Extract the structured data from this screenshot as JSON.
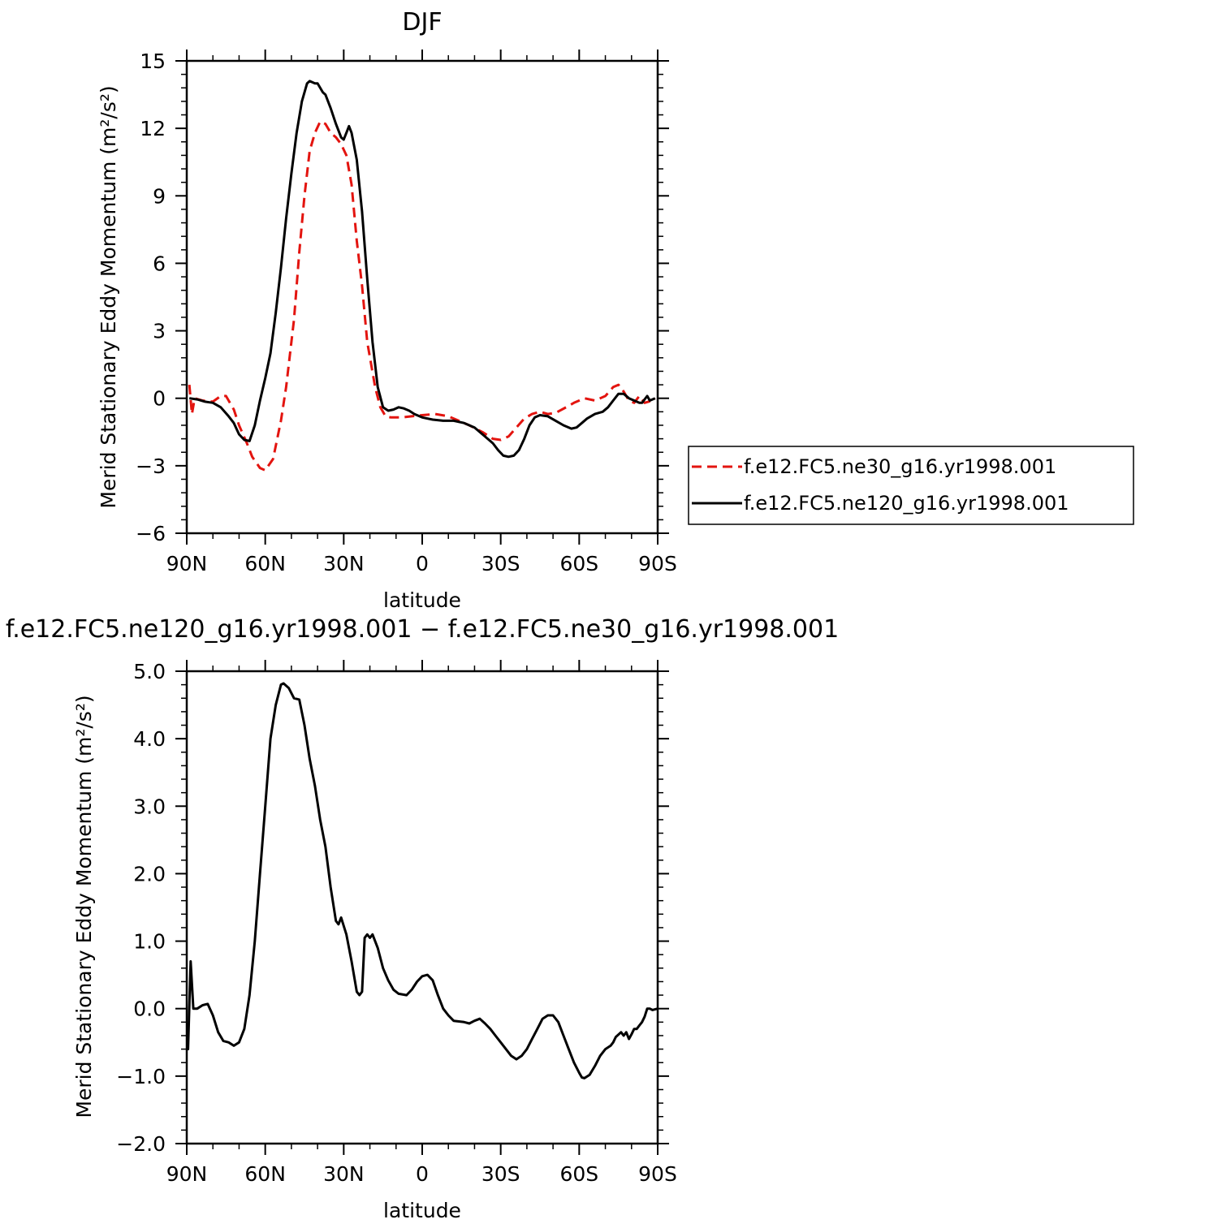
{
  "chart_data": [
    {
      "type": "line",
      "title": "DJF",
      "xlabel": "latitude",
      "ylabel": "Merid Stationary Eddy Momentum (m²/s²)",
      "xlim": [
        90,
        -90
      ],
      "ylim": [
        -6,
        15
      ],
      "xticks": [
        90,
        60,
        30,
        0,
        -30,
        -60,
        -90
      ],
      "xtick_labels": [
        "90N",
        "60N",
        "30N",
        "0",
        "30S",
        "60S",
        "90S"
      ],
      "yticks": [
        -6,
        -3,
        0,
        3,
        6,
        9,
        12,
        15
      ],
      "ytick_labels": [
        "−6",
        "−3",
        "0",
        "3",
        "6",
        "9",
        "12",
        "15"
      ],
      "grid": false,
      "legend": "right",
      "series": [
        {
          "name": "f.e12.FC5.ne30_g16.yr1998.001",
          "color": "#e3140f",
          "dash": "dashed",
          "points": [
            [
              89,
              0.6
            ],
            [
              88,
              -0.7
            ],
            [
              87,
              0.0
            ],
            [
              84,
              -0.1
            ],
            [
              80,
              -0.15
            ],
            [
              77,
              0.1
            ],
            [
              75,
              0.1
            ],
            [
              72,
              -0.5
            ],
            [
              70,
              -1.2
            ],
            [
              67,
              -2.0
            ],
            [
              65,
              -2.6
            ],
            [
              62,
              -3.1
            ],
            [
              60,
              -3.2
            ],
            [
              57,
              -2.7
            ],
            [
              54,
              -1.0
            ],
            [
              52,
              0.5
            ],
            [
              49,
              3.5
            ],
            [
              47,
              6.5
            ],
            [
              45,
              9.0
            ],
            [
              43,
              11.0
            ],
            [
              41,
              11.8
            ],
            [
              39,
              12.3
            ],
            [
              37,
              12.2
            ],
            [
              35,
              11.8
            ],
            [
              33,
              11.6
            ],
            [
              31,
              11.3
            ],
            [
              29,
              10.8
            ],
            [
              27,
              9.5
            ],
            [
              25,
              7.0
            ],
            [
              23,
              5.0
            ],
            [
              21,
              2.5
            ],
            [
              18,
              0.5
            ],
            [
              16,
              -0.4
            ],
            [
              14,
              -0.8
            ],
            [
              12,
              -0.85
            ],
            [
              8,
              -0.85
            ],
            [
              4,
              -0.8
            ],
            [
              0,
              -0.75
            ],
            [
              -5,
              -0.7
            ],
            [
              -10,
              -0.8
            ],
            [
              -14,
              -1.0
            ],
            [
              -18,
              -1.2
            ],
            [
              -23,
              -1.5
            ],
            [
              -27,
              -1.8
            ],
            [
              -30,
              -1.85
            ],
            [
              -33,
              -1.7
            ],
            [
              -36,
              -1.3
            ],
            [
              -39,
              -0.9
            ],
            [
              -42,
              -0.7
            ],
            [
              -45,
              -0.6
            ],
            [
              -48,
              -0.7
            ],
            [
              -51,
              -0.65
            ],
            [
              -55,
              -0.4
            ],
            [
              -58,
              -0.2
            ],
            [
              -62,
              0.0
            ],
            [
              -66,
              -0.1
            ],
            [
              -70,
              0.1
            ],
            [
              -73,
              0.5
            ],
            [
              -75,
              0.6
            ],
            [
              -77,
              0.3
            ],
            [
              -79,
              -0.1
            ],
            [
              -81,
              -0.2
            ],
            [
              -83,
              0.1
            ],
            [
              -85,
              -0.2
            ],
            [
              -88,
              -0.1
            ],
            [
              -89,
              0.0
            ]
          ]
        },
        {
          "name": "f.e12.FC5.ne120_g16.yr1998.001",
          "color": "#000000",
          "dash": "solid",
          "points": [
            [
              89,
              0.0
            ],
            [
              86,
              -0.05
            ],
            [
              83,
              -0.15
            ],
            [
              80,
              -0.2
            ],
            [
              77,
              -0.4
            ],
            [
              74,
              -0.8
            ],
            [
              72,
              -1.1
            ],
            [
              70,
              -1.6
            ],
            [
              68,
              -1.85
            ],
            [
              66,
              -1.9
            ],
            [
              64,
              -1.2
            ],
            [
              62,
              -0.1
            ],
            [
              60,
              0.9
            ],
            [
              58,
              2.0
            ],
            [
              56,
              3.8
            ],
            [
              54,
              5.8
            ],
            [
              52,
              8.0
            ],
            [
              50,
              10.0
            ],
            [
              48,
              11.8
            ],
            [
              46,
              13.2
            ],
            [
              44,
              14.0
            ],
            [
              43,
              14.1
            ],
            [
              41,
              14.0
            ],
            [
              40,
              14.0
            ],
            [
              38,
              13.6
            ],
            [
              37,
              13.5
            ],
            [
              35,
              12.9
            ],
            [
              33,
              12.2
            ],
            [
              31,
              11.6
            ],
            [
              30,
              11.5
            ],
            [
              29,
              11.8
            ],
            [
              28,
              12.1
            ],
            [
              27,
              11.8
            ],
            [
              25,
              10.6
            ],
            [
              23,
              8.3
            ],
            [
              21,
              5.3
            ],
            [
              19,
              2.5
            ],
            [
              17,
              0.5
            ],
            [
              15,
              -0.4
            ],
            [
              13,
              -0.55
            ],
            [
              11,
              -0.5
            ],
            [
              9,
              -0.4
            ],
            [
              7,
              -0.45
            ],
            [
              5,
              -0.55
            ],
            [
              3,
              -0.7
            ],
            [
              0,
              -0.85
            ],
            [
              -4,
              -0.95
            ],
            [
              -8,
              -1.0
            ],
            [
              -12,
              -1.0
            ],
            [
              -16,
              -1.1
            ],
            [
              -20,
              -1.3
            ],
            [
              -24,
              -1.7
            ],
            [
              -27,
              -2.0
            ],
            [
              -29,
              -2.3
            ],
            [
              -31,
              -2.55
            ],
            [
              -33,
              -2.6
            ],
            [
              -35,
              -2.55
            ],
            [
              -37,
              -2.3
            ],
            [
              -39,
              -1.8
            ],
            [
              -41,
              -1.2
            ],
            [
              -43,
              -0.85
            ],
            [
              -45,
              -0.75
            ],
            [
              -48,
              -0.8
            ],
            [
              -51,
              -1.0
            ],
            [
              -54,
              -1.2
            ],
            [
              -57,
              -1.35
            ],
            [
              -59,
              -1.3
            ],
            [
              -61,
              -1.1
            ],
            [
              -63,
              -0.9
            ],
            [
              -66,
              -0.7
            ],
            [
              -69,
              -0.6
            ],
            [
              -71,
              -0.4
            ],
            [
              -73,
              -0.1
            ],
            [
              -75,
              0.2
            ],
            [
              -77,
              0.2
            ],
            [
              -79,
              0.0
            ],
            [
              -81,
              -0.1
            ],
            [
              -83,
              -0.2
            ],
            [
              -84,
              -0.2
            ],
            [
              -85,
              -0.05
            ],
            [
              -86,
              0.1
            ],
            [
              -87,
              -0.1
            ],
            [
              -89,
              0.0
            ]
          ]
        }
      ]
    },
    {
      "type": "line",
      "title": "f.e12.FC5.ne120_g16.yr1998.001 − f.e12.FC5.ne30_g16.yr1998.001",
      "xlabel": "latitude",
      "ylabel": "Merid Stationary Eddy Momentum (m²/s²)",
      "xlim": [
        90,
        -90
      ],
      "ylim": [
        -2.0,
        5.0
      ],
      "xticks": [
        90,
        60,
        30,
        0,
        -30,
        -60,
        -90
      ],
      "xtick_labels": [
        "90N",
        "60N",
        "30N",
        "0",
        "30S",
        "60S",
        "90S"
      ],
      "yticks": [
        -2.0,
        -1.0,
        0.0,
        1.0,
        2.0,
        3.0,
        4.0,
        5.0
      ],
      "ytick_labels": [
        "−2.0",
        "−1.0",
        "0.0",
        "1.0",
        "2.0",
        "3.0",
        "4.0",
        "5.0"
      ],
      "grid": false,
      "legend": "none",
      "series": [
        {
          "color": "#000000",
          "dash": "solid",
          "points": [
            [
              90,
              -0.6
            ],
            [
              89.5,
              -0.6
            ],
            [
              88.5,
              0.7
            ],
            [
              87.5,
              0.0
            ],
            [
              86,
              0.0
            ],
            [
              84,
              0.05
            ],
            [
              82,
              0.07
            ],
            [
              80,
              -0.1
            ],
            [
              78,
              -0.35
            ],
            [
              76,
              -0.48
            ],
            [
              74,
              -0.5
            ],
            [
              72,
              -0.55
            ],
            [
              70,
              -0.5
            ],
            [
              68,
              -0.3
            ],
            [
              66,
              0.2
            ],
            [
              64,
              1.0
            ],
            [
              62,
              2.0
            ],
            [
              60,
              3.0
            ],
            [
              58,
              4.0
            ],
            [
              56,
              4.5
            ],
            [
              54,
              4.8
            ],
            [
              53,
              4.82
            ],
            [
              51,
              4.75
            ],
            [
              49,
              4.6
            ],
            [
              47,
              4.58
            ],
            [
              45,
              4.2
            ],
            [
              43,
              3.7
            ],
            [
              41,
              3.3
            ],
            [
              39,
              2.8
            ],
            [
              37,
              2.4
            ],
            [
              35,
              1.8
            ],
            [
              33,
              1.3
            ],
            [
              32,
              1.25
            ],
            [
              31,
              1.35
            ],
            [
              29,
              1.1
            ],
            [
              27,
              0.7
            ],
            [
              25,
              0.25
            ],
            [
              24,
              0.2
            ],
            [
              23,
              0.25
            ],
            [
              22,
              1.05
            ],
            [
              21,
              1.1
            ],
            [
              20,
              1.05
            ],
            [
              19,
              1.1
            ],
            [
              17,
              0.9
            ],
            [
              15,
              0.6
            ],
            [
              13,
              0.42
            ],
            [
              11,
              0.28
            ],
            [
              9,
              0.22
            ],
            [
              6,
              0.2
            ],
            [
              4,
              0.28
            ],
            [
              2,
              0.4
            ],
            [
              0,
              0.48
            ],
            [
              -2,
              0.5
            ],
            [
              -4,
              0.42
            ],
            [
              -6,
              0.2
            ],
            [
              -8,
              0.0
            ],
            [
              -10,
              -0.1
            ],
            [
              -12,
              -0.18
            ],
            [
              -16,
              -0.2
            ],
            [
              -18,
              -0.22
            ],
            [
              -20,
              -0.18
            ],
            [
              -22,
              -0.15
            ],
            [
              -24,
              -0.22
            ],
            [
              -26,
              -0.3
            ],
            [
              -28,
              -0.4
            ],
            [
              -30,
              -0.5
            ],
            [
              -32,
              -0.6
            ],
            [
              -34,
              -0.7
            ],
            [
              -36,
              -0.75
            ],
            [
              -38,
              -0.7
            ],
            [
              -40,
              -0.6
            ],
            [
              -42,
              -0.45
            ],
            [
              -44,
              -0.3
            ],
            [
              -46,
              -0.15
            ],
            [
              -48,
              -0.1
            ],
            [
              -50,
              -0.1
            ],
            [
              -52,
              -0.2
            ],
            [
              -54,
              -0.4
            ],
            [
              -56,
              -0.6
            ],
            [
              -58,
              -0.8
            ],
            [
              -60,
              -0.95
            ],
            [
              -61,
              -1.02
            ],
            [
              -62,
              -1.03
            ],
            [
              -64,
              -0.98
            ],
            [
              -66,
              -0.85
            ],
            [
              -68,
              -0.7
            ],
            [
              -70,
              -0.6
            ],
            [
              -72,
              -0.55
            ],
            [
              -73,
              -0.5
            ],
            [
              -74,
              -0.42
            ],
            [
              -76,
              -0.35
            ],
            [
              -77,
              -0.4
            ],
            [
              -78,
              -0.35
            ],
            [
              -79,
              -0.45
            ],
            [
              -80,
              -0.38
            ],
            [
              -81,
              -0.3
            ],
            [
              -82,
              -0.3
            ],
            [
              -83,
              -0.25
            ],
            [
              -84,
              -0.2
            ],
            [
              -85,
              -0.12
            ],
            [
              -86,
              0.0
            ],
            [
              -87,
              0.0
            ],
            [
              -88,
              -0.02
            ],
            [
              -90,
              0.0
            ]
          ]
        }
      ]
    }
  ]
}
